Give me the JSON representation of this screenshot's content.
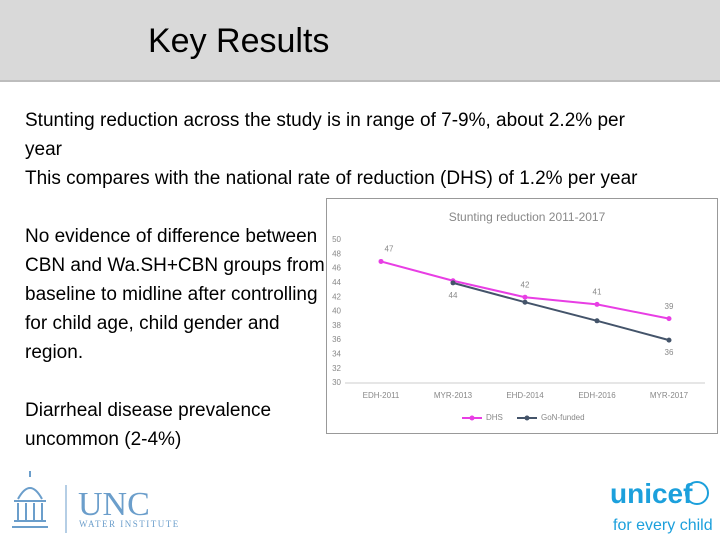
{
  "header": {
    "title": "Key Results"
  },
  "body": {
    "paragraphs": [
      "Stunting reduction across the study is in range of 7-9%, about 2.2% per year",
      "This compares with the national rate of reduction (DHS) of 1.2% per year",
      "No evidence of difference between CBN and Wa.SH+CBN groups from baseline to midline after controlling for child age, child gender and region.",
      "Diarrheal disease prevalence uncommon (2-4%)"
    ]
  },
  "chart_data": {
    "type": "line",
    "title": "Stunting reduction 2011-2017",
    "categories": [
      "EDH-2011",
      "MYR-2013",
      "EHD-2014",
      "EDH-2016",
      "MYR-2017"
    ],
    "series": [
      {
        "name": "DHS",
        "color": "#e83ee4",
        "values": [
          47,
          44.3,
          42,
          41,
          39
        ],
        "value_labels": [
          "47",
          null,
          "42",
          "41",
          "39"
        ]
      },
      {
        "name": "GoN-funded",
        "color": "#44546a",
        "values": [
          null,
          44,
          41.3,
          38.7,
          36
        ],
        "value_labels": [
          null,
          "44",
          null,
          null,
          "36"
        ]
      }
    ],
    "ylim": [
      30,
      50
    ],
    "yticks": [
      30,
      32,
      34,
      36,
      38,
      40,
      42,
      44,
      46,
      48,
      50
    ],
    "grid": false,
    "legend": "bottom"
  },
  "footer": {
    "left_logo": {
      "name": "UNC",
      "subtitle": "WATER INSTITUTE"
    },
    "right_logo": {
      "name": "unicef",
      "tagline": "for every child"
    }
  }
}
